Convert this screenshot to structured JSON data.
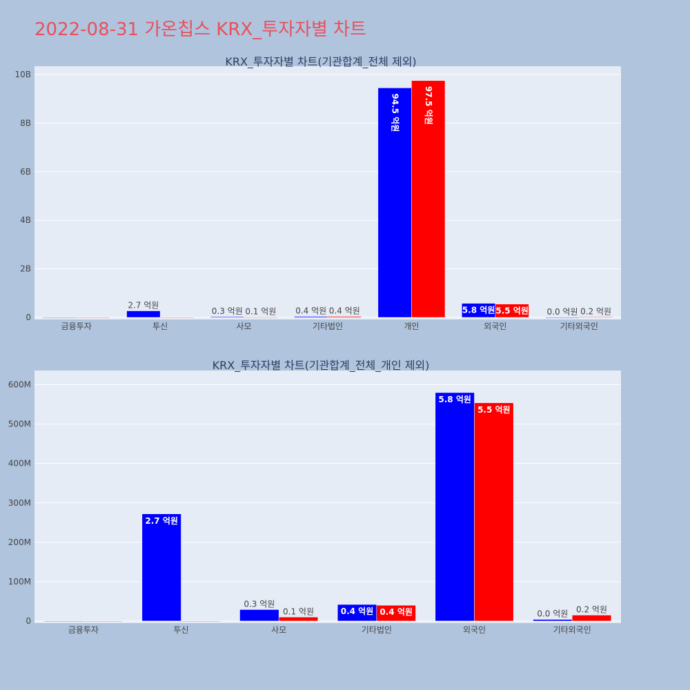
{
  "page_title": "2022-08-31 가온칩스 KRX_투자자별 차트",
  "colors": {
    "page_bg": "#b0c4de",
    "plot_bg": "#e5ecf6",
    "title": "#e8505b",
    "series_a": "#0000ff",
    "series_b": "#ff0000"
  },
  "chart_data": [
    {
      "type": "bar",
      "title": "KRX_투자자별 차트(기관합계_전체 제외)",
      "categories": [
        "금융투자",
        "투신",
        "사모",
        "기타법인",
        "개인",
        "외국인",
        "기타외국인"
      ],
      "ylim": [
        0,
        10000000000
      ],
      "yticks": [
        0,
        2000000000,
        4000000000,
        6000000000,
        8000000000,
        10000000000
      ],
      "ytick_labels": [
        "0",
        "2B",
        "4B",
        "6B",
        "8B",
        "10B"
      ],
      "grid": true,
      "series": [
        {
          "color": "#0000ff",
          "values": [
            0,
            270000000,
            30000000,
            40000000,
            9450000000,
            580000000,
            4000000
          ],
          "labels": [
            "",
            "2.7 억원",
            "0.3 억원",
            "0.4 억원",
            "94.5 억원",
            "5.8 억원",
            "0.0 억원"
          ],
          "label_pos": [
            "none",
            "outside",
            "outside",
            "outside",
            "inside-rot",
            "inside",
            "outside"
          ]
        },
        {
          "color": "#ff0000",
          "values": [
            0,
            0,
            10000000,
            40000000,
            9750000000,
            550000000,
            15000000
          ],
          "labels": [
            "",
            "",
            "0.1 억원",
            "0.4 억원",
            "97.5 억원",
            "5.5 억원",
            "0.2 억원"
          ],
          "label_pos": [
            "none",
            "none",
            "outside",
            "outside",
            "inside-rot",
            "inside",
            "outside"
          ]
        }
      ]
    },
    {
      "type": "bar",
      "title": "KRX_투자자별 차트(기관합계_전체_개인 제외)",
      "categories": [
        "금융투자",
        "투신",
        "사모",
        "기타법인",
        "외국인",
        "기타외국인"
      ],
      "ylim": [
        0,
        615000000
      ],
      "yticks": [
        0,
        100000000,
        200000000,
        300000000,
        400000000,
        500000000,
        600000000
      ],
      "ytick_labels": [
        "0",
        "100M",
        "200M",
        "300M",
        "400M",
        "500M",
        "600M"
      ],
      "grid": true,
      "series": [
        {
          "color": "#0000ff",
          "values": [
            0,
            272000000,
            29000000,
            42000000,
            580000000,
            4000000
          ],
          "labels": [
            "",
            "2.7 억원",
            "0.3 억원",
            "0.4 억원",
            "5.8 억원",
            "0.0 억원"
          ],
          "label_pos": [
            "none",
            "inside",
            "outside",
            "inside",
            "inside",
            "outside"
          ]
        },
        {
          "color": "#ff0000",
          "values": [
            0,
            0,
            10000000,
            40000000,
            554000000,
            15000000
          ],
          "labels": [
            "",
            "",
            "0.1 억원",
            "0.4 억원",
            "5.5 억원",
            "0.2 억원"
          ],
          "label_pos": [
            "none",
            "none",
            "outside",
            "inside",
            "inside",
            "outside"
          ]
        }
      ]
    }
  ]
}
